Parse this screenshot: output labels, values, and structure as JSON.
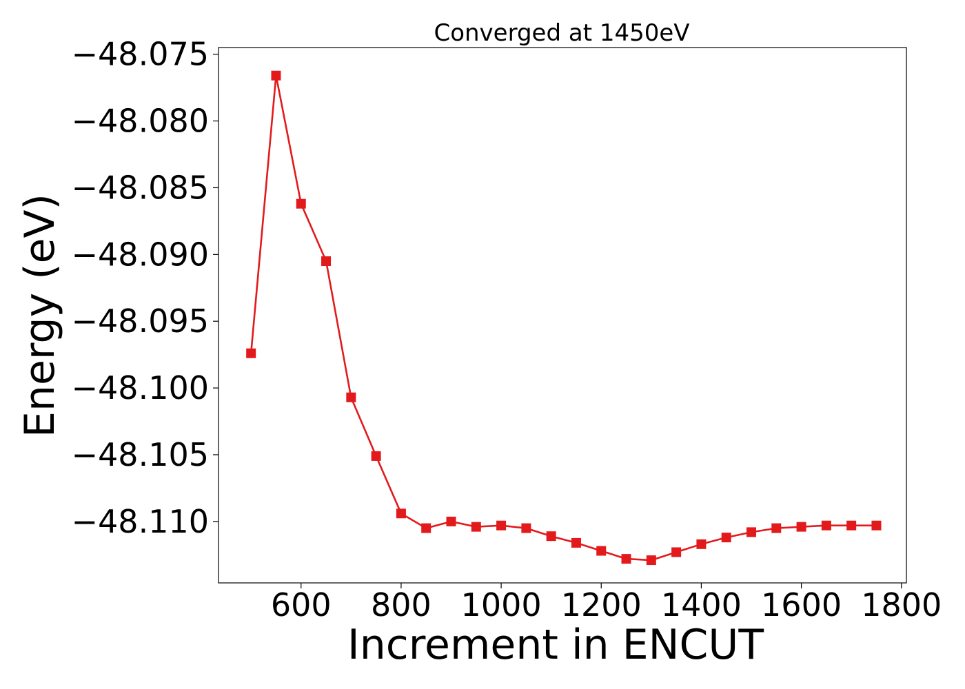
{
  "chart_data": {
    "type": "line",
    "title": "Converged at 1450eV",
    "xlabel": "Increment in ENCUT",
    "ylabel": "Energy (eV)",
    "xlim": [
      435,
      1810
    ],
    "ylim": [
      -48.1146,
      -48.0745
    ],
    "grid": false,
    "color": "#e31a1c",
    "marker": "square",
    "x_ticks": [
      600,
      800,
      1000,
      1200,
      1400,
      1600,
      1800
    ],
    "x_tick_labels": [
      "600",
      "800",
      "1000",
      "1200",
      "1400",
      "1600",
      "1800"
    ],
    "y_ticks": [
      -48.075,
      -48.08,
      -48.085,
      -48.09,
      -48.095,
      -48.1,
      -48.105,
      -48.11
    ],
    "y_tick_labels": [
      "−48.075",
      "−48.080",
      "−48.085",
      "−48.090",
      "−48.095",
      "−48.100",
      "−48.105",
      "−48.110"
    ],
    "x": [
      500,
      550,
      600,
      650,
      700,
      750,
      800,
      850,
      900,
      950,
      1000,
      1050,
      1100,
      1150,
      1200,
      1250,
      1300,
      1350,
      1400,
      1450,
      1500,
      1550,
      1600,
      1650,
      1700,
      1750
    ],
    "y": [
      -48.0974,
      -48.0766,
      -48.0862,
      -48.0905,
      -48.1007,
      -48.1051,
      -48.1094,
      -48.1105,
      -48.11,
      -48.1104,
      -48.1103,
      -48.1105,
      -48.1111,
      -48.1116,
      -48.1122,
      -48.1128,
      -48.1129,
      -48.1123,
      -48.1117,
      -48.1112,
      -48.1108,
      -48.1105,
      -48.1104,
      -48.1103,
      -48.1103,
      -48.1103
    ]
  }
}
